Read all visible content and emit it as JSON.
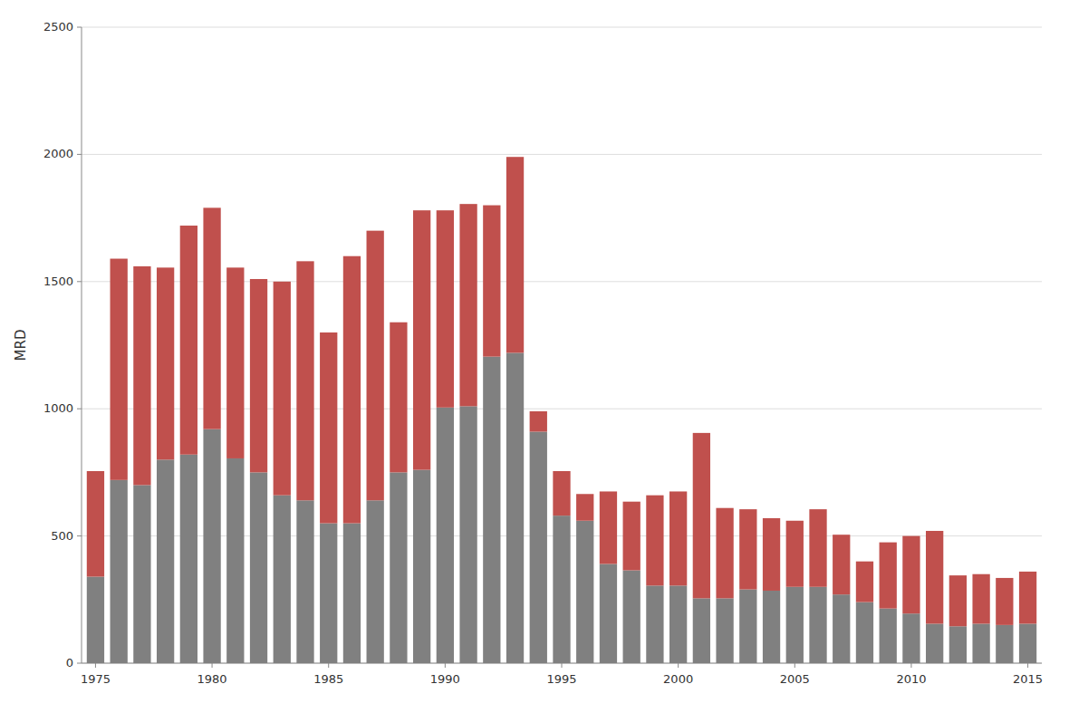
{
  "chart_data": {
    "type": "bar",
    "stacked": true,
    "grid": true,
    "ylabel": "MRD",
    "x": [
      1975,
      1976,
      1977,
      1978,
      1979,
      1980,
      1981,
      1982,
      1983,
      1984,
      1985,
      1986,
      1987,
      1988,
      1989,
      1990,
      1991,
      1992,
      1993,
      1994,
      1995,
      1996,
      1997,
      1998,
      1999,
      2000,
      2001,
      2002,
      2003,
      2004,
      2005,
      2006,
      2007,
      2008,
      2009,
      2010,
      2011,
      2012,
      2013,
      2014,
      2015
    ],
    "series": [
      {
        "color": "#808080",
        "values": [
          340,
          720,
          700,
          800,
          820,
          920,
          805,
          750,
          660,
          640,
          550,
          550,
          640,
          750,
          760,
          1005,
          1010,
          1205,
          1220,
          910,
          580,
          560,
          390,
          365,
          305,
          305,
          255,
          255,
          290,
          285,
          300,
          300,
          270,
          240,
          215,
          195,
          155,
          145,
          155,
          150,
          155
        ]
      },
      {
        "color": "#c0504d",
        "values": [
          415,
          870,
          860,
          755,
          900,
          870,
          750,
          760,
          840,
          940,
          750,
          1050,
          1060,
          590,
          1020,
          775,
          795,
          595,
          770,
          80,
          175,
          105,
          285,
          270,
          355,
          370,
          650,
          355,
          315,
          285,
          260,
          305,
          235,
          160,
          260,
          305,
          365,
          200,
          195,
          185,
          205
        ]
      }
    ],
    "ylim": [
      0,
      2500
    ],
    "yticks": [
      0,
      500,
      1000,
      1500,
      2000,
      2500
    ],
    "xlim": [
      1974.4,
      2015.6
    ],
    "xticks": [
      1975,
      1980,
      1985,
      1990,
      1995,
      2000,
      2005,
      2010,
      2015
    ]
  }
}
